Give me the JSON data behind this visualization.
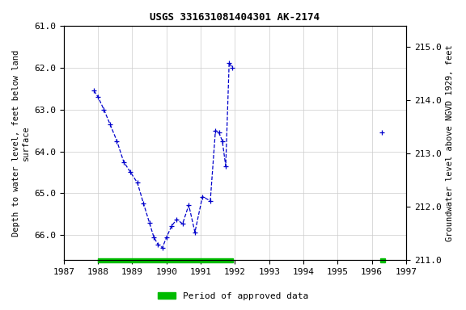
{
  "title": "USGS 331631081404301 AK-2174",
  "ylabel_left": "Depth to water level, feet below land\nsurface",
  "ylabel_right": "Groundwater level above NGVD 1929, feet",
  "xlim": [
    1987,
    1997
  ],
  "ylim_left": [
    61.0,
    66.6
  ],
  "ylim_right_top": 215.4,
  "ylim_right_bottom": 211.0,
  "yticks_left": [
    61.0,
    62.0,
    63.0,
    64.0,
    65.0,
    66.0
  ],
  "yticks_right": [
    215.0,
    214.0,
    213.0,
    212.0,
    211.0
  ],
  "xticks": [
    1987,
    1988,
    1989,
    1990,
    1991,
    1992,
    1993,
    1994,
    1995,
    1996,
    1997
  ],
  "line_color": "#0000CC",
  "marker": "+",
  "linestyle": "--",
  "segment1_x": [
    1987.88,
    1988.0,
    1988.17,
    1988.35,
    1988.55,
    1988.75,
    1988.95,
    1989.15,
    1989.33,
    1989.5,
    1989.63,
    1989.75,
    1989.88,
    1990.0,
    1990.15,
    1990.3,
    1990.47,
    1990.65,
    1990.83,
    1991.05,
    1991.28,
    1991.43,
    1991.53,
    1991.63,
    1991.73,
    1991.83,
    1991.92
  ],
  "segment1_y": [
    62.55,
    62.7,
    63.0,
    63.35,
    63.75,
    64.25,
    64.5,
    64.75,
    65.25,
    65.7,
    66.05,
    66.22,
    66.3,
    66.05,
    65.78,
    65.62,
    65.73,
    65.28,
    65.93,
    65.08,
    65.18,
    63.5,
    63.55,
    63.75,
    64.35,
    61.88,
    62.0
  ],
  "segment2_x": [
    1996.3
  ],
  "segment2_y": [
    63.55
  ],
  "approved_bar1_xstart": 1988.0,
  "approved_bar1_xend": 1991.95,
  "approved_bar2_xstart": 1996.25,
  "approved_bar2_xend": 1996.38,
  "bar_color": "#00BB00",
  "legend_label": "Period of approved data",
  "background_color": "#ffffff",
  "grid_color": "#cccccc",
  "title_fontsize": 9,
  "axis_fontsize": 7.5,
  "tick_fontsize": 8
}
